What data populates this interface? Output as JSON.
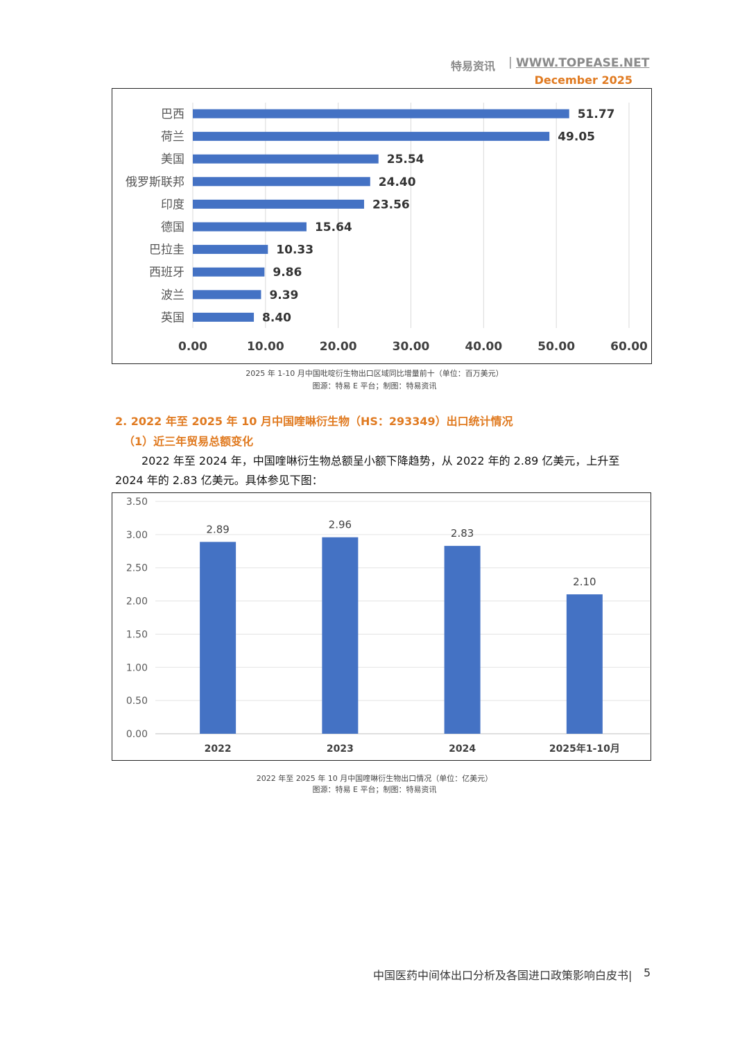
{
  "header": {
    "brand": "特易资讯",
    "separator": "|",
    "website": "WWW.TOPEASE.NET",
    "date": "December 2025"
  },
  "colors": {
    "accent": "#e07a20",
    "bar_hbar": "#4472c4",
    "bar_vbar": "#4472c4"
  },
  "chart_data": [
    {
      "type": "bar",
      "orientation": "horizontal",
      "categories": [
        "巴西",
        "荷兰",
        "美国",
        "俄罗斯联邦",
        "印度",
        "德国",
        "巴拉圭",
        "西班牙",
        "波兰",
        "英国"
      ],
      "values": [
        51.77,
        49.05,
        25.54,
        24.4,
        23.56,
        15.64,
        10.33,
        9.86,
        9.39,
        8.4
      ],
      "value_labels": [
        "51.77",
        "49.05",
        "25.54",
        "24.40",
        "23.56",
        "15.64",
        "10.33",
        "9.86",
        "9.39",
        "8.40"
      ],
      "xlim": [
        0,
        60
      ],
      "xticks": [
        "0.00",
        "10.00",
        "20.00",
        "30.00",
        "40.00",
        "50.00",
        "60.00"
      ],
      "grid": "vertical"
    },
    {
      "type": "bar",
      "orientation": "vertical",
      "categories": [
        "2022",
        "2023",
        "2024",
        "2025年1-10月"
      ],
      "values": [
        2.89,
        2.96,
        2.83,
        2.1
      ],
      "value_labels": [
        "2.89",
        "2.96",
        "2.83",
        "2.10"
      ],
      "ylim": [
        0,
        3.5
      ],
      "yticks": [
        "0.00",
        "0.50",
        "1.00",
        "1.50",
        "2.00",
        "2.50",
        "3.00",
        "3.50"
      ],
      "grid": "horizontal"
    }
  ],
  "captions": {
    "chart1_title": "2025 年 1-10 月中国吡啶衍生物出口区域同比增量前十（单位：百万美元）",
    "chart1_source": "图源：特易 E 平台；制图：特易资讯",
    "chart2_title": "2022 年至 2025 年 10 月中国喹啉衍生物出口情况（单位：亿美元）",
    "chart2_source": "图源：特易 E 平台；制图：特易资讯"
  },
  "section": {
    "heading": "2. 2022 年至 2025 年 10 月中国喹啉衍生物（HS：293349）出口统计情况",
    "subheading": "（1）近三年贸易总额变化",
    "paragraph_line1": "2022 年至 2024 年，中国喹啉衍生物总额呈小额下降趋势，从 2022 年的 2.89 亿美元，上升至",
    "paragraph_line2": "2024 年的 2.83 亿美元。具体参见下图："
  },
  "footer": {
    "title": "中国医药中间体出口分析及各国进口政策影响白皮书|",
    "page": "5"
  }
}
